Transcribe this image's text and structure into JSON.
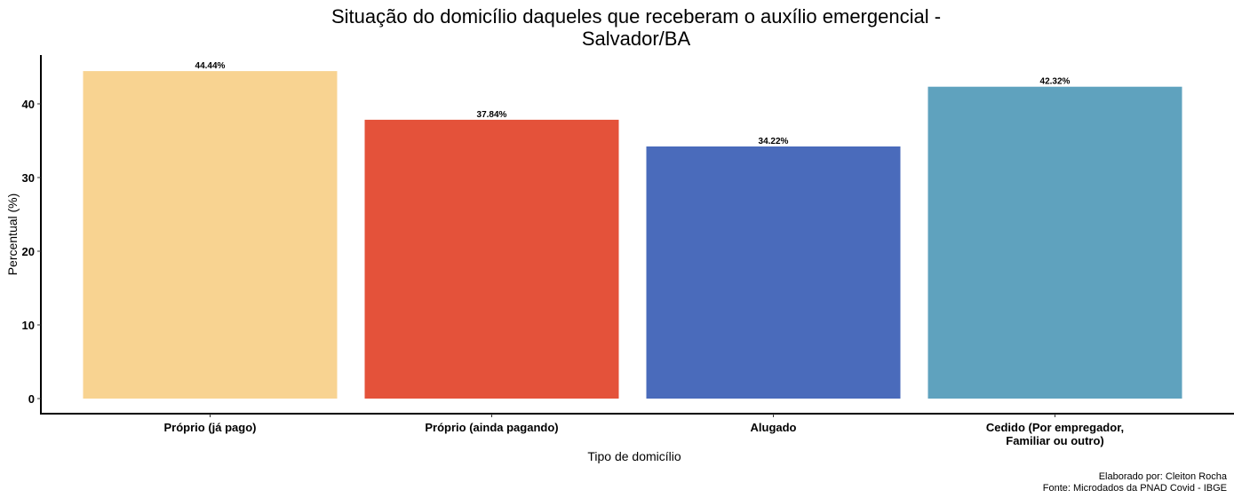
{
  "chart_data": {
    "type": "bar",
    "title": [
      "Situação do domicílio daqueles que receberam o auxílio emergencial -",
      "Salvador/BA"
    ],
    "xlabel": "Tipo de domicílio",
    "ylabel": "Percentual (%)",
    "categories": [
      [
        "Próprio (já pago)"
      ],
      [
        "Próprio (ainda pagando)"
      ],
      [
        "Alugado"
      ],
      [
        "Cedido (Por empregador,",
        "Familiar ou outro)"
      ]
    ],
    "values": [
      44.44,
      37.84,
      34.22,
      42.32
    ],
    "value_labels": [
      "44.44%",
      "37.84%",
      "34.22%",
      "42.32%"
    ],
    "colors": [
      "#F8D391",
      "#E4523A",
      "#4A6BBB",
      "#5FA2BE"
    ],
    "yticks": [
      0,
      10,
      20,
      30,
      40
    ],
    "ylim": [
      0,
      46.7
    ],
    "grid": false,
    "legend": "none",
    "caption": [
      "Elaborado por: Cleiton Rocha",
      "Fonte: Microdados da PNAD Covid - IBGE"
    ]
  }
}
